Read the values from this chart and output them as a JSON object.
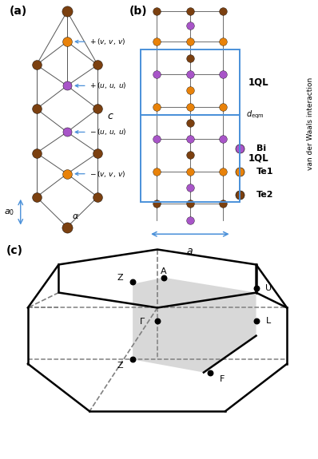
{
  "colors": {
    "Bi": "#A855C8",
    "Te1": "#E8820A",
    "Te2": "#7B4010",
    "arrow": "#4A90D9",
    "bond": "#555555",
    "background": "#FFFFFF"
  },
  "panel_a_label": "(a)",
  "panel_b_label": "(b)",
  "panel_c_label": "(c)",
  "van_der_waals_text": "van der Waals interaction"
}
